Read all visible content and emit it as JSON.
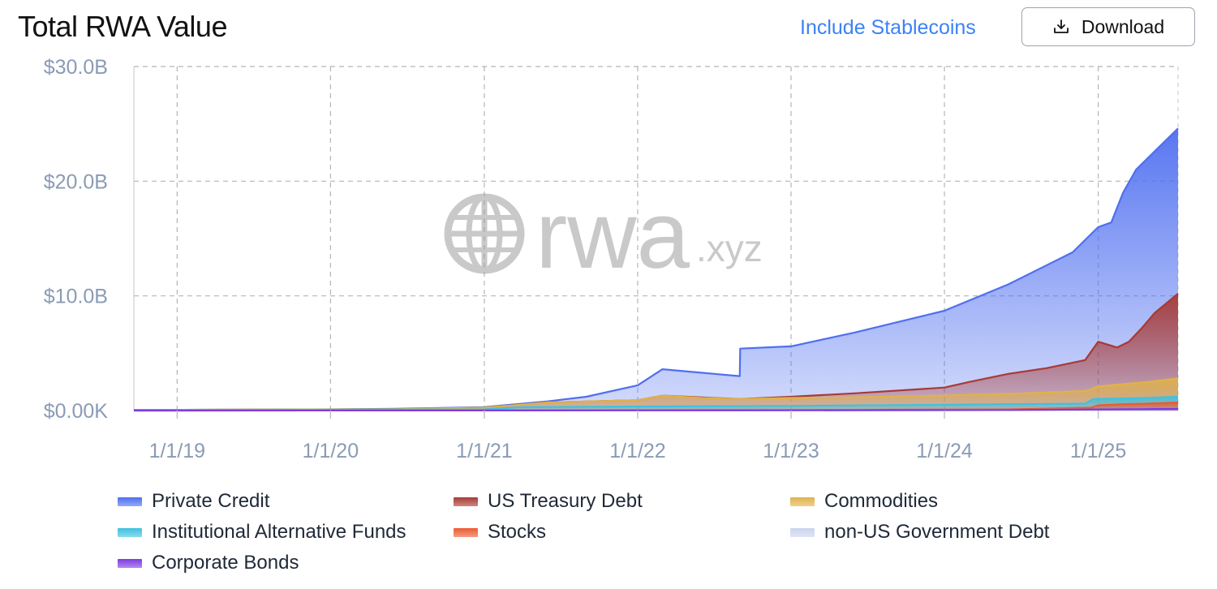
{
  "header": {
    "title": "Total RWA Value",
    "toggle_label": "Include Stablecoins",
    "download_label": "Download",
    "download_icon": "download-icon"
  },
  "watermark": {
    "icon": "globe-icon",
    "word": "rwa",
    "suffix": ".xyz"
  },
  "colors": {
    "private_credit": "#4f6ff0",
    "us_treasury": "#a83a35",
    "commodities": "#e0b24a",
    "inst_alt_funds": "#3fc1e0",
    "stocks": "#ec5a32",
    "non_us_gov": "#c9d3ef",
    "corporate_bonds": "#7d3ce0",
    "toggle": "#3b82f6"
  },
  "chart_data": {
    "type": "area",
    "stacked": true,
    "y_ticks": [
      "$30.0B",
      "$20.0B",
      "$10.0B",
      "$0.00K"
    ],
    "x_ticks": [
      "1/1/19",
      "1/1/20",
      "1/1/21",
      "1/1/22",
      "1/1/23",
      "1/1/24",
      "1/1/25"
    ],
    "ylim": [
      0,
      30
    ],
    "y_unit": "billions USD",
    "xlim": [
      "2018-09-20",
      "2025-07-10"
    ],
    "grid": true,
    "legend_position": "bottom",
    "series": [
      {
        "key": "corporate_bonds",
        "name": "Corporate Bonds",
        "points": [
          [
            "2018-09-20",
            0
          ],
          [
            "2023-06-01",
            0.02
          ],
          [
            "2024-06-01",
            0.05
          ],
          [
            "2025-01-01",
            0.1
          ],
          [
            "2025-07-10",
            0.15
          ]
        ]
      },
      {
        "key": "non_us_gov",
        "name": "non-US Government Debt",
        "points": [
          [
            "2018-09-20",
            0
          ],
          [
            "2023-06-01",
            0.02
          ],
          [
            "2024-06-01",
            0.05
          ],
          [
            "2025-01-01",
            0.1
          ],
          [
            "2025-07-10",
            0.15
          ]
        ]
      },
      {
        "key": "stocks",
        "name": "Stocks",
        "points": [
          [
            "2018-09-20",
            0
          ],
          [
            "2023-01-01",
            0.05
          ],
          [
            "2024-06-01",
            0.1
          ],
          [
            "2024-12-15",
            0.25
          ],
          [
            "2025-01-01",
            0.45
          ],
          [
            "2025-03-01",
            0.55
          ],
          [
            "2025-05-01",
            0.6
          ],
          [
            "2025-07-10",
            0.7
          ]
        ]
      },
      {
        "key": "inst_alt_funds",
        "name": "Institutional Alternative Funds",
        "points": [
          [
            "2018-09-20",
            0.05
          ],
          [
            "2021-01-01",
            0.1
          ],
          [
            "2021-04-01",
            0.3
          ],
          [
            "2022-01-01",
            0.35
          ],
          [
            "2023-01-01",
            0.4
          ],
          [
            "2024-01-01",
            0.5
          ],
          [
            "2024-12-01",
            0.6
          ],
          [
            "2024-12-20",
            1.0
          ],
          [
            "2025-03-01",
            1.05
          ],
          [
            "2025-05-01",
            1.1
          ],
          [
            "2025-07-10",
            1.2
          ]
        ]
      },
      {
        "key": "commodities",
        "name": "Commodities",
        "points": [
          [
            "2018-09-20",
            0.05
          ],
          [
            "2019-06-01",
            0.08
          ],
          [
            "2020-06-01",
            0.12
          ],
          [
            "2021-01-01",
            0.25
          ],
          [
            "2021-06-01",
            0.7
          ],
          [
            "2022-01-01",
            0.9
          ],
          [
            "2022-03-01",
            1.3
          ],
          [
            "2022-06-01",
            1.1
          ],
          [
            "2022-09-01",
            1.0
          ],
          [
            "2023-01-01",
            1.1
          ],
          [
            "2023-06-01",
            1.15
          ],
          [
            "2024-01-01",
            1.3
          ],
          [
            "2024-06-01",
            1.45
          ],
          [
            "2024-12-01",
            1.7
          ],
          [
            "2025-01-01",
            2.1
          ],
          [
            "2025-03-01",
            2.3
          ],
          [
            "2025-05-01",
            2.5
          ],
          [
            "2025-07-10",
            2.8
          ]
        ]
      },
      {
        "key": "us_treasury",
        "name": "US Treasury Debt",
        "points": [
          [
            "2018-09-20",
            0.05
          ],
          [
            "2020-06-01",
            0.12
          ],
          [
            "2021-01-01",
            0.25
          ],
          [
            "2021-06-01",
            0.7
          ],
          [
            "2022-01-01",
            0.9
          ],
          [
            "2022-03-01",
            1.3
          ],
          [
            "2022-09-01",
            1.0
          ],
          [
            "2023-01-01",
            1.2
          ],
          [
            "2023-06-01",
            1.5
          ],
          [
            "2024-01-01",
            2.0
          ],
          [
            "2024-03-01",
            2.5
          ],
          [
            "2024-06-01",
            3.2
          ],
          [
            "2024-09-01",
            3.7
          ],
          [
            "2024-12-01",
            4.4
          ],
          [
            "2025-01-01",
            6.0
          ],
          [
            "2025-02-15",
            5.5
          ],
          [
            "2025-03-15",
            6.0
          ],
          [
            "2025-04-15",
            7.2
          ],
          [
            "2025-05-15",
            8.5
          ],
          [
            "2025-07-10",
            10.2
          ]
        ]
      },
      {
        "key": "private_credit",
        "name": "Private Credit",
        "points": [
          [
            "2018-09-20",
            0.05
          ],
          [
            "2019-06-01",
            0.06
          ],
          [
            "2020-01-01",
            0.1
          ],
          [
            "2020-06-01",
            0.15
          ],
          [
            "2021-01-01",
            0.3
          ],
          [
            "2021-06-01",
            0.8
          ],
          [
            "2021-09-01",
            1.2
          ],
          [
            "2022-01-01",
            2.2
          ],
          [
            "2022-03-01",
            3.6
          ],
          [
            "2022-06-01",
            3.3
          ],
          [
            "2022-09-01",
            3.0
          ],
          [
            "2022-09-02",
            5.4
          ],
          [
            "2023-01-01",
            5.6
          ],
          [
            "2023-06-01",
            6.8
          ],
          [
            "2024-01-01",
            8.7
          ],
          [
            "2024-06-01",
            11.0
          ],
          [
            "2024-11-01",
            13.8
          ],
          [
            "2025-01-01",
            16.0
          ],
          [
            "2025-02-01",
            16.4
          ],
          [
            "2025-03-01",
            19.0
          ],
          [
            "2025-04-01",
            21.0
          ],
          [
            "2025-05-15",
            22.6
          ],
          [
            "2025-07-10",
            24.6
          ]
        ]
      }
    ]
  }
}
